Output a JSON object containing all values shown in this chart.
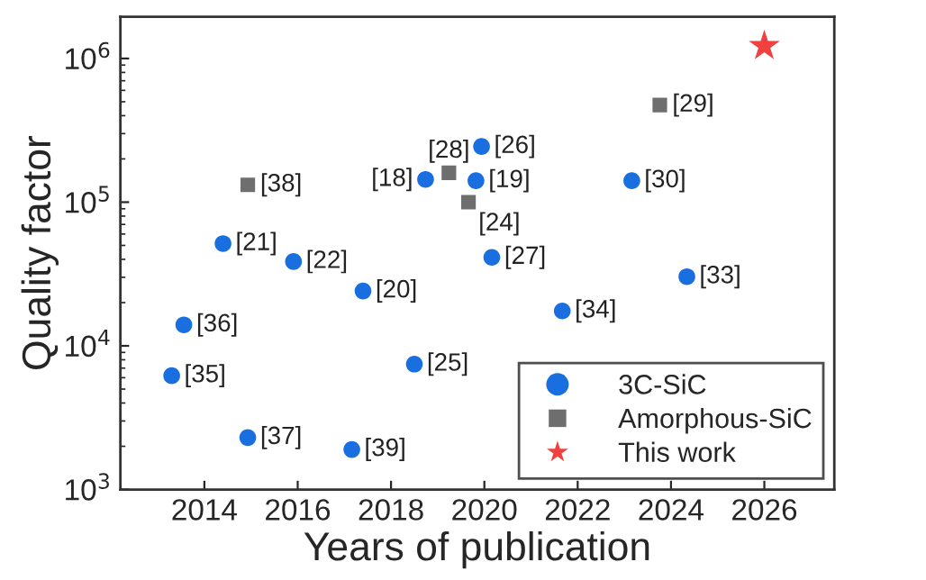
{
  "chart_data": {
    "type": "scatter",
    "xlabel": "Years of publication",
    "ylabel": "Quality factor",
    "log": "y",
    "xlim": [
      2012.2,
      2027.5
    ],
    "xticks": [
      2014,
      2016,
      2018,
      2020,
      2022,
      2024,
      2026
    ],
    "ylim": [
      1000,
      1950000
    ],
    "yticks": [
      {
        "value": 1000,
        "label": "10$^{3}$"
      },
      {
        "value": 10000,
        "label": "10$^{4}$"
      },
      {
        "value": 100000,
        "label": "10$^{5}$"
      },
      {
        "value": 1000000,
        "label": "10$^{6}$"
      }
    ],
    "grid": false,
    "legend": "bottom right",
    "series": [
      {
        "name": "3C-SiC",
        "color": "#1a6fe0",
        "marker": "circle",
        "x": [
          2013.3,
          2013.56,
          2014.4,
          2014.93,
          2015.91,
          2017.4,
          2017.16,
          2018.5,
          2018.74,
          2019.94,
          2019.82,
          2020.16,
          2021.67,
          2023.16,
          2024.34
        ],
        "values": [
          6200,
          14000,
          51500,
          2300,
          38600,
          24100,
          1900,
          7460,
          144000,
          244000,
          141000,
          41300,
          17500,
          141000,
          30300
        ]
      },
      {
        "name": "Amorphous-SiC",
        "color": "#6e6e6e",
        "marker": "square",
        "x": [
          2014.93,
          2019.24,
          2019.66,
          2023.76
        ],
        "values": [
          132000,
          160000,
          100000,
          474000
        ]
      },
      {
        "name": "This work",
        "color": "#f04040",
        "marker": "star",
        "x": [
          2026.0
        ],
        "values": [
          1220000
        ]
      }
    ],
    "annotations": [
      {
        "text": "[35]",
        "x": 2013.3,
        "y": 6200
      },
      {
        "text": "[36]",
        "x": 2013.56,
        "y": 14000
      },
      {
        "text": "[21]",
        "x": 2014.4,
        "y": 51500
      },
      {
        "text": "[37]",
        "x": 2014.93,
        "y": 2300
      },
      {
        "text": "[22]",
        "x": 2015.91,
        "y": 38600
      },
      {
        "text": "[20]",
        "x": 2017.4,
        "y": 24100
      },
      {
        "text": "[39]",
        "x": 2017.16,
        "y": 1900
      },
      {
        "text": "[25]",
        "x": 2018.5,
        "y": 7460
      },
      {
        "text": "[26]",
        "x": 2019.94,
        "y": 244000
      },
      {
        "text": "[19]",
        "x": 2019.82,
        "y": 141000
      },
      {
        "text": "[27]",
        "x": 2020.16,
        "y": 41300
      },
      {
        "text": "[34]",
        "x": 2021.67,
        "y": 17500
      },
      {
        "text": "[30]",
        "x": 2023.16,
        "y": 141000
      },
      {
        "text": "[33]",
        "x": 2024.34,
        "y": 30300
      },
      {
        "text": "[38]",
        "x": 2014.93,
        "y": 132000
      },
      {
        "text": "[29]",
        "x": 2023.76,
        "y": 474000
      },
      {
        "text": "[24]",
        "x": 2019.66,
        "y": 100000
      },
      {
        "text": "[18]",
        "x": 2018.74,
        "y": 144000
      },
      {
        "text": "[28]",
        "x": 2019.24,
        "y": 160000
      }
    ]
  }
}
